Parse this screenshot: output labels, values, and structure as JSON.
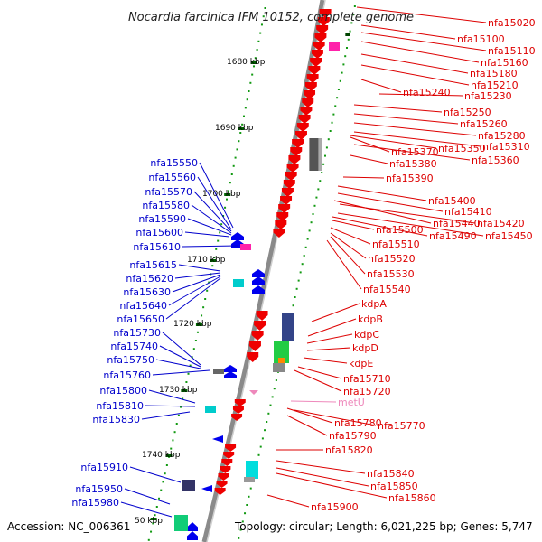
{
  "title": "Nocardia farcinica IFM 10152, complete genome",
  "footer": {
    "accession": "Accession: NC_006361",
    "info": "Topology: circular; Length: 6,021,225 bp; Genes: 5,747"
  },
  "colors": {
    "forward_strand": "#0000ee",
    "reverse_strand": "#ee0000",
    "backbone": "#888888",
    "tick": "#119911",
    "rna": "#ee88bb"
  },
  "scale_labels": [
    "1680 kbp",
    "1690 kbp",
    "1700 kbp",
    "1710 kbp",
    "1720 kbp",
    "1730 kbp",
    "1740 kbp",
    "50 kbp"
  ],
  "right_labels": [
    "nfa15020",
    "nfa15100",
    "nfa15110",
    "nfa15160",
    "nfa15180",
    "nfa15210",
    "nfa15240",
    "nfa15230",
    "nfa15250",
    "nfa15260",
    "nfa15280",
    "nfa15310",
    "nfa15370",
    "nfa15350",
    "nfa15360",
    "nfa15380",
    "nfa15390",
    "nfa15400",
    "nfa15410",
    "nfa15440",
    "nfa15420",
    "nfa15500",
    "nfa15490",
    "nfa15450",
    "nfa15510",
    "nfa15520",
    "nfa15530",
    "nfa15540",
    "kdpA",
    "kdpB",
    "kdpC",
    "kdpD",
    "kdpE",
    "nfa15710",
    "nfa15720",
    "metU",
    "nfa15780",
    "nfa15770",
    "nfa15790",
    "nfa15820",
    "nfa15840",
    "nfa15850",
    "nfa15860",
    "nfa15900"
  ],
  "left_labels": [
    "nfa15550",
    "nfa15560",
    "nfa15570",
    "nfa15580",
    "nfa15590",
    "nfa15600",
    "nfa15610",
    "nfa15615",
    "nfa15620",
    "nfa15630",
    "nfa15640",
    "nfa15650",
    "nfa15730",
    "nfa15740",
    "nfa15750",
    "nfa15760",
    "nfa15800",
    "nfa15810",
    "nfa15830",
    "nfa15910",
    "nfa15950",
    "nfa15980"
  ]
}
